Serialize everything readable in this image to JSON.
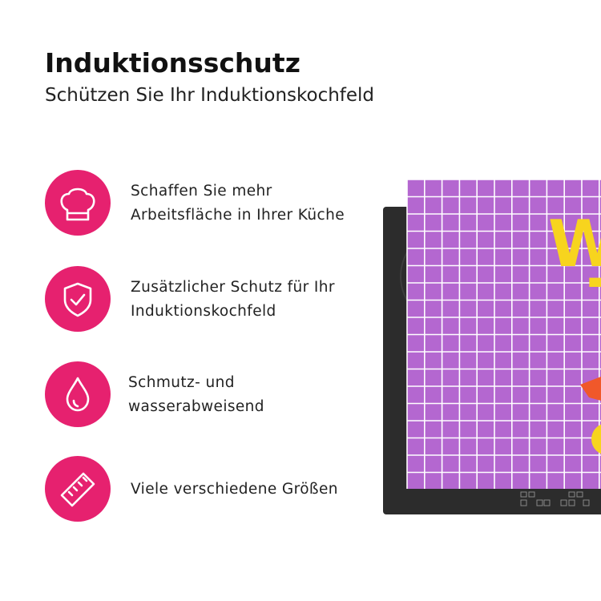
{
  "header": {
    "title": "Induktionsschutz",
    "subtitle": "Schützen Sie Ihr Induktionskochfeld"
  },
  "features": [
    {
      "lines": [
        "Schaffen Sie mehr",
        "Arbeitsfläche in Ihrer Küche"
      ]
    },
    {
      "lines": [
        "Zusätzlicher Schutz für Ihr",
        "Induktionskochfeld"
      ]
    },
    {
      "lines": [
        "Schmutz- und",
        "wasserabweisend"
      ]
    },
    {
      "lines": [
        "Viele verschiedene Größen"
      ]
    }
  ],
  "product": {
    "letters": [
      "W",
      "T"
    ]
  }
}
